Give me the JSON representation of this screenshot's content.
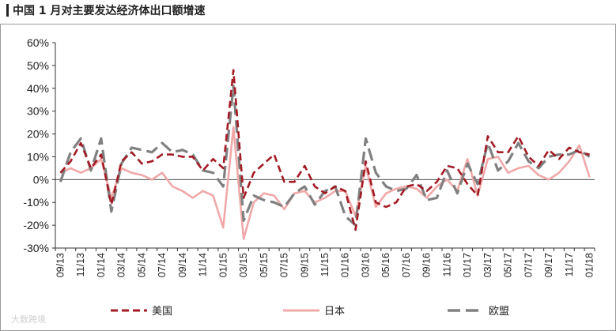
{
  "title": "中国 1 月对主要发达经济体出口额增速",
  "watermark": "大数跨境",
  "chart_data": {
    "type": "line",
    "title": "中国 1 月对主要发达经济体出口额增速",
    "ylabel": "",
    "xlabel": "",
    "ylim": [
      -30,
      60
    ],
    "y_ticks": [
      "60%",
      "50%",
      "40%",
      "30%",
      "20%",
      "10%",
      "0%",
      "-10%",
      "-20%",
      "-30%"
    ],
    "y_unit": "%",
    "x": [
      "09/13",
      "10/13",
      "11/13",
      "12/13",
      "01/14",
      "02/14",
      "03/14",
      "04/14",
      "05/14",
      "06/14",
      "07/14",
      "08/14",
      "09/14",
      "10/14",
      "11/14",
      "12/14",
      "01/15",
      "02/15",
      "03/15",
      "04/15",
      "05/15",
      "06/15",
      "07/15",
      "08/15",
      "09/15",
      "10/15",
      "11/15",
      "12/15",
      "01/16",
      "02/16",
      "03/16",
      "04/16",
      "05/16",
      "06/16",
      "07/16",
      "08/16",
      "09/16",
      "10/16",
      "11/16",
      "12/16",
      "01/17",
      "02/17",
      "03/17",
      "04/17",
      "05/17",
      "06/17",
      "07/17",
      "08/17",
      "09/17",
      "10/17",
      "11/17",
      "12/17",
      "01/18"
    ],
    "x_tick_labels": [
      "09/13",
      "11/13",
      "01/14",
      "03/14",
      "05/14",
      "07/14",
      "09/14",
      "11/14",
      "01/15",
      "03/15",
      "05/15",
      "07/15",
      "09/15",
      "11/15",
      "01/16",
      "03/16",
      "05/16",
      "07/16",
      "09/16",
      "11/16",
      "01/17",
      "03/17",
      "05/17",
      "07/17",
      "09/17",
      "11/17",
      "01/18"
    ],
    "series": [
      {
        "name": "美国",
        "color": "#a31b24",
        "style": "dashed",
        "values": [
          3,
          8,
          16,
          5,
          11,
          -11,
          8,
          12,
          7,
          8,
          11,
          11,
          10,
          10,
          4,
          9,
          5,
          48,
          -8,
          3,
          7,
          11,
          -1,
          -1,
          6,
          -3,
          -6,
          -3,
          -5,
          -22,
          8,
          -10,
          -12,
          -10,
          -3,
          -2,
          -5,
          -1,
          6,
          5,
          -2,
          -7,
          19,
          12,
          12,
          19,
          10,
          6,
          13,
          9,
          14,
          12,
          11
        ]
      },
      {
        "name": "日本",
        "color": "#f0a8a8",
        "style": "solid",
        "values": [
          3,
          5,
          3,
          5,
          9,
          -8,
          5,
          3,
          2,
          0,
          3,
          -3,
          -5,
          -8,
          -5,
          -7,
          -21,
          23,
          -26,
          -10,
          -6,
          -7,
          -13,
          -6,
          -5,
          -10,
          -8,
          -5,
          -5,
          -16,
          6,
          -12,
          -6,
          -4,
          -3,
          -4,
          -8,
          -3,
          0,
          -5,
          9,
          -7,
          9,
          10,
          3,
          5,
          6,
          2,
          0,
          3,
          8,
          15,
          1
        ]
      },
      {
        "name": "欧盟",
        "color": "#808080",
        "style": "longdash",
        "values": [
          -1,
          12,
          18,
          4,
          18,
          -14,
          7,
          14,
          13,
          12,
          16,
          12,
          13,
          11,
          4,
          3,
          -3,
          41,
          -18,
          -7,
          -9,
          -10,
          -12,
          -6,
          -3,
          -11,
          -5,
          -3,
          -16,
          -20,
          18,
          3,
          -3,
          -5,
          -4,
          2,
          -9,
          -8,
          4,
          -6,
          7,
          -2,
          16,
          4,
          8,
          16,
          8,
          5,
          10,
          11,
          11,
          13,
          10
        ]
      }
    ],
    "grid": false,
    "legend_position": "bottom"
  }
}
